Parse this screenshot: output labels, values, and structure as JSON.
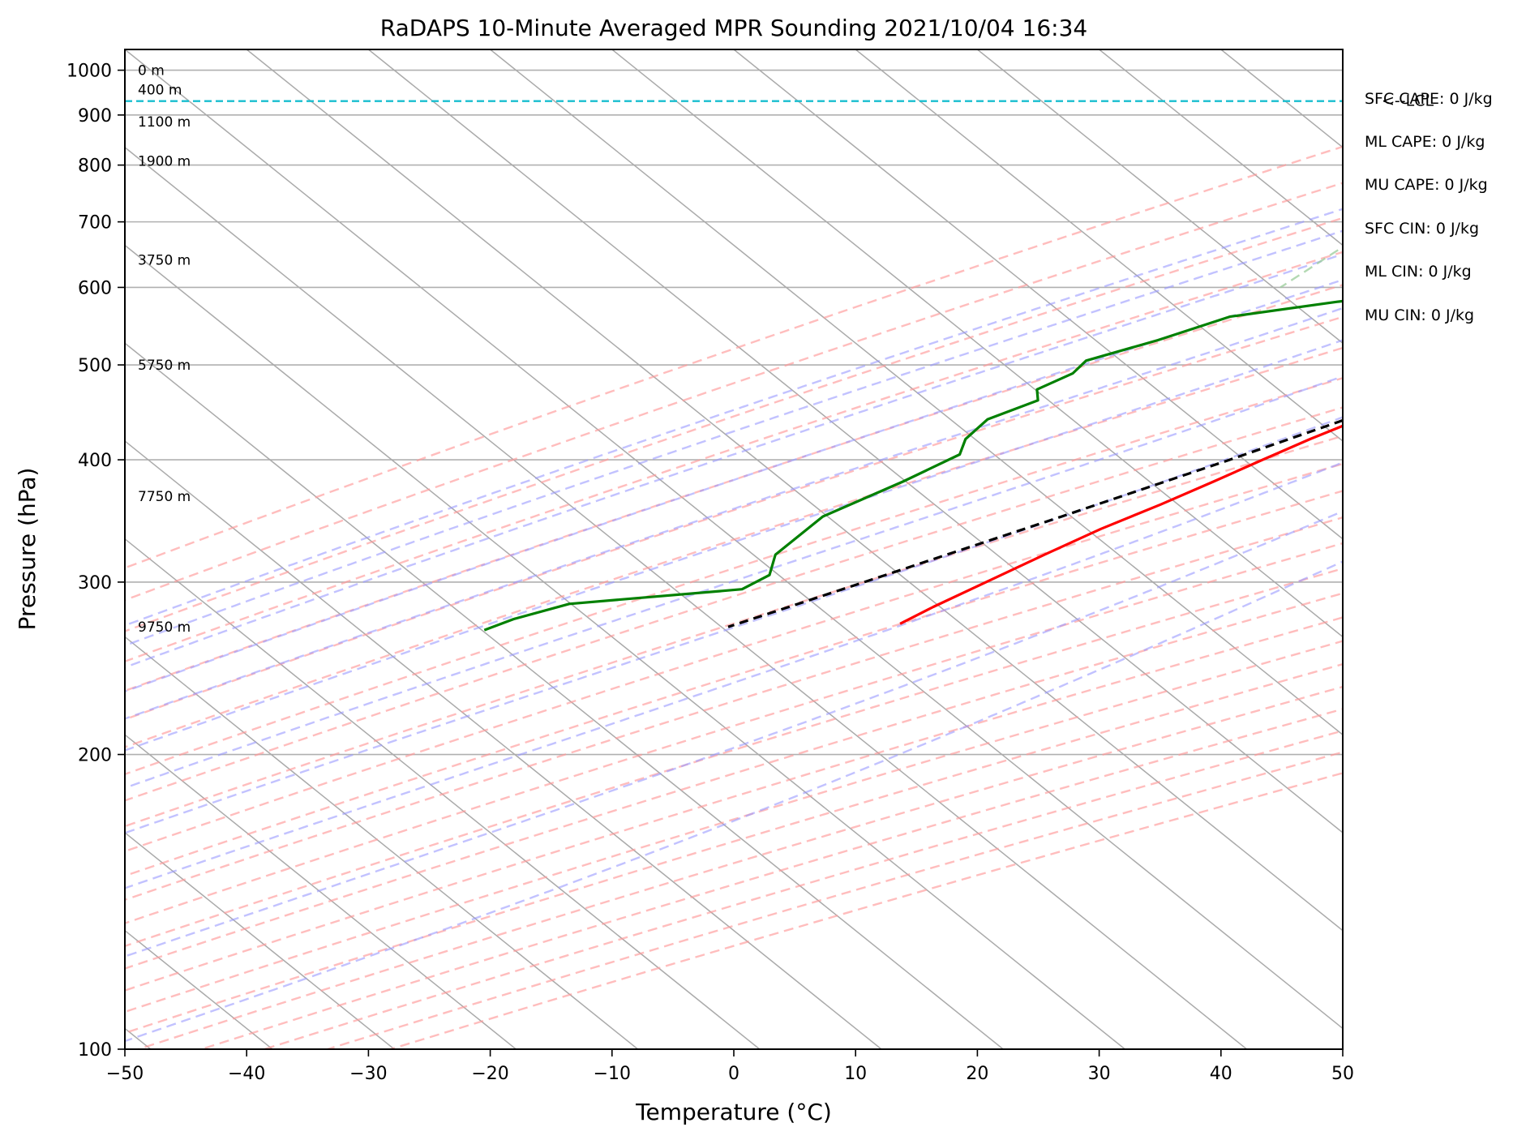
{
  "chart_data": {
    "type": "line",
    "chart_kind": "skew-T log-P sounding",
    "title": "RaDAPS 10-Minute Averaged MPR Sounding 2021/10/04 16:34",
    "xlabel": "Temperature (°C)",
    "ylabel": "Pressure (hPa)",
    "xlim": [
      -50,
      50
    ],
    "ylim": [
      1050,
      100
    ],
    "y_scale": "log",
    "x_ticks": [
      -50,
      -40,
      -30,
      -20,
      -10,
      0,
      10,
      20,
      30,
      40,
      50
    ],
    "x_tick_labels": [
      "−50",
      "−40",
      "−30",
      "−20",
      "−10",
      "0",
      "10",
      "20",
      "30",
      "40",
      "50"
    ],
    "y_ticks": [
      1000,
      900,
      800,
      700,
      600,
      500,
      400,
      300,
      200,
      100
    ],
    "y_tick_labels": [
      "1000",
      "900",
      "800",
      "700",
      "600",
      "500",
      "400",
      "300",
      "200",
      "100"
    ],
    "grid": true,
    "skew_degrees_per_log_decade": 100,
    "series": [
      {
        "key": "temperature",
        "color": "#ff0000",
        "style": "solid",
        "points": [
          [
            985,
            25.8
          ],
          [
            982,
            23.5
          ],
          [
            970,
            21.5
          ],
          [
            958,
            20.5
          ],
          [
            930,
            20.4
          ],
          [
            910,
            20.0
          ],
          [
            890,
            19.3
          ],
          [
            860,
            17.2
          ],
          [
            830,
            15.0
          ],
          [
            800,
            13.5
          ],
          [
            780,
            12.2
          ],
          [
            760,
            11.0
          ],
          [
            740,
            10.4
          ],
          [
            720,
            9.5
          ],
          [
            700,
            8.5
          ],
          [
            680,
            6.9
          ],
          [
            650,
            4.6
          ],
          [
            630,
            3.5
          ],
          [
            600,
            1.5
          ],
          [
            580,
            -0.2
          ],
          [
            560,
            -1.6
          ],
          [
            540,
            -3.0
          ],
          [
            520,
            -5.0
          ],
          [
            500,
            -7.0
          ],
          [
            480,
            -9.4
          ],
          [
            460,
            -11.5
          ],
          [
            440,
            -13.0
          ],
          [
            420,
            -15.0
          ],
          [
            400,
            -16.8
          ],
          [
            380,
            -18.6
          ],
          [
            360,
            -20.6
          ],
          [
            340,
            -23.0
          ],
          [
            320,
            -25.0
          ],
          [
            300,
            -27.0
          ],
          [
            283,
            -28.8
          ],
          [
            272,
            -29.8
          ]
        ]
      },
      {
        "key": "dewpoint",
        "color": "#008000",
        "style": "solid",
        "points": [
          [
            988,
            21.2
          ],
          [
            975,
            20.0
          ],
          [
            965,
            20.1
          ],
          [
            945,
            20.0
          ],
          [
            930,
            19.8
          ],
          [
            905,
            19.4
          ],
          [
            880,
            18.3
          ],
          [
            860,
            16.2
          ],
          [
            855,
            15.8
          ],
          [
            840,
            15.7
          ],
          [
            820,
            15.0
          ],
          [
            800,
            13.7
          ],
          [
            780,
            12.7
          ],
          [
            750,
            10.2
          ],
          [
            720,
            5.4
          ],
          [
            700,
            0.4
          ],
          [
            680,
            -5.0
          ],
          [
            660,
            -9.4
          ],
          [
            640,
            -13.6
          ],
          [
            625,
            -16.8
          ],
          [
            600,
            -18.3
          ],
          [
            580,
            -26.8
          ],
          [
            560,
            -34.1
          ],
          [
            530,
            -37.6
          ],
          [
            505,
            -41.4
          ],
          [
            490,
            -41.2
          ],
          [
            472,
            -42.5
          ],
          [
            460,
            -41.3
          ],
          [
            440,
            -43.5
          ],
          [
            420,
            -43.3
          ],
          [
            405,
            -42.2
          ],
          [
            380,
            -44.1
          ],
          [
            350,
            -47.1
          ],
          [
            320,
            -47.1
          ],
          [
            305,
            -45.5
          ],
          [
            295,
            -46.3
          ],
          [
            285,
            -59.0
          ],
          [
            275,
            -62.0
          ],
          [
            268,
            -63.3
          ]
        ]
      },
      {
        "key": "parcel",
        "color": "#000000",
        "style": "dashed",
        "points": [
          [
            985,
            25.8
          ],
          [
            930,
            21.5
          ],
          [
            900,
            20.2
          ],
          [
            850,
            18.0
          ],
          [
            800,
            15.4
          ],
          [
            750,
            12.6
          ],
          [
            700,
            9.5
          ],
          [
            650,
            6.1
          ],
          [
            600,
            2.2
          ],
          [
            550,
            -2.2
          ],
          [
            500,
            -7.1
          ],
          [
            450,
            -12.8
          ],
          [
            400,
            -19.5
          ],
          [
            350,
            -27.5
          ],
          [
            300,
            -37.0
          ],
          [
            270,
            -43.6
          ]
        ]
      }
    ],
    "lcl": {
      "label": "<--LCL",
      "pressure": 930
    },
    "height_labels": [
      {
        "text": "0 m",
        "pressure": 1000
      },
      {
        "text": "400 m",
        "pressure": 955
      },
      {
        "text": "1100 m",
        "pressure": 886
      },
      {
        "text": "1900 m",
        "pressure": 808
      },
      {
        "text": "3750 m",
        "pressure": 640
      },
      {
        "text": "5750 m",
        "pressure": 500
      },
      {
        "text": "7750 m",
        "pressure": 367
      },
      {
        "text": "9750 m",
        "pressure": 270
      }
    ],
    "annotations": [
      "SFC CAPE: 0 J/kg",
      "ML CAPE: 0 J/kg",
      "MU CAPE: 0 J/kg",
      "SFC CIN: 0 J/kg",
      "ML CIN: 0 J/kg",
      "MU CIN: 0 J/kg"
    ],
    "reference_lines": {
      "dry_adiabats_theta_c": [
        -30,
        -20,
        -10,
        0,
        10,
        20,
        30,
        40,
        50,
        60,
        70,
        80,
        90,
        100,
        110,
        120,
        130,
        140,
        150,
        160,
        170,
        180,
        190,
        200
      ],
      "moist_adiabats_theta_w_c": [
        -15,
        -10,
        -5,
        0,
        5,
        10,
        15,
        20,
        25,
        30,
        35
      ],
      "mixing_ratio_g_per_kg": [
        0.4,
        1,
        2,
        4,
        7,
        10,
        16,
        24,
        32
      ],
      "dry_adiabat_color": "#ff9999",
      "moist_adiabat_color": "#9999ff",
      "mixing_ratio_color": "#99cc99",
      "isotherm_color": "#aaaaaa",
      "lcl_line_color": "#17becf"
    }
  }
}
